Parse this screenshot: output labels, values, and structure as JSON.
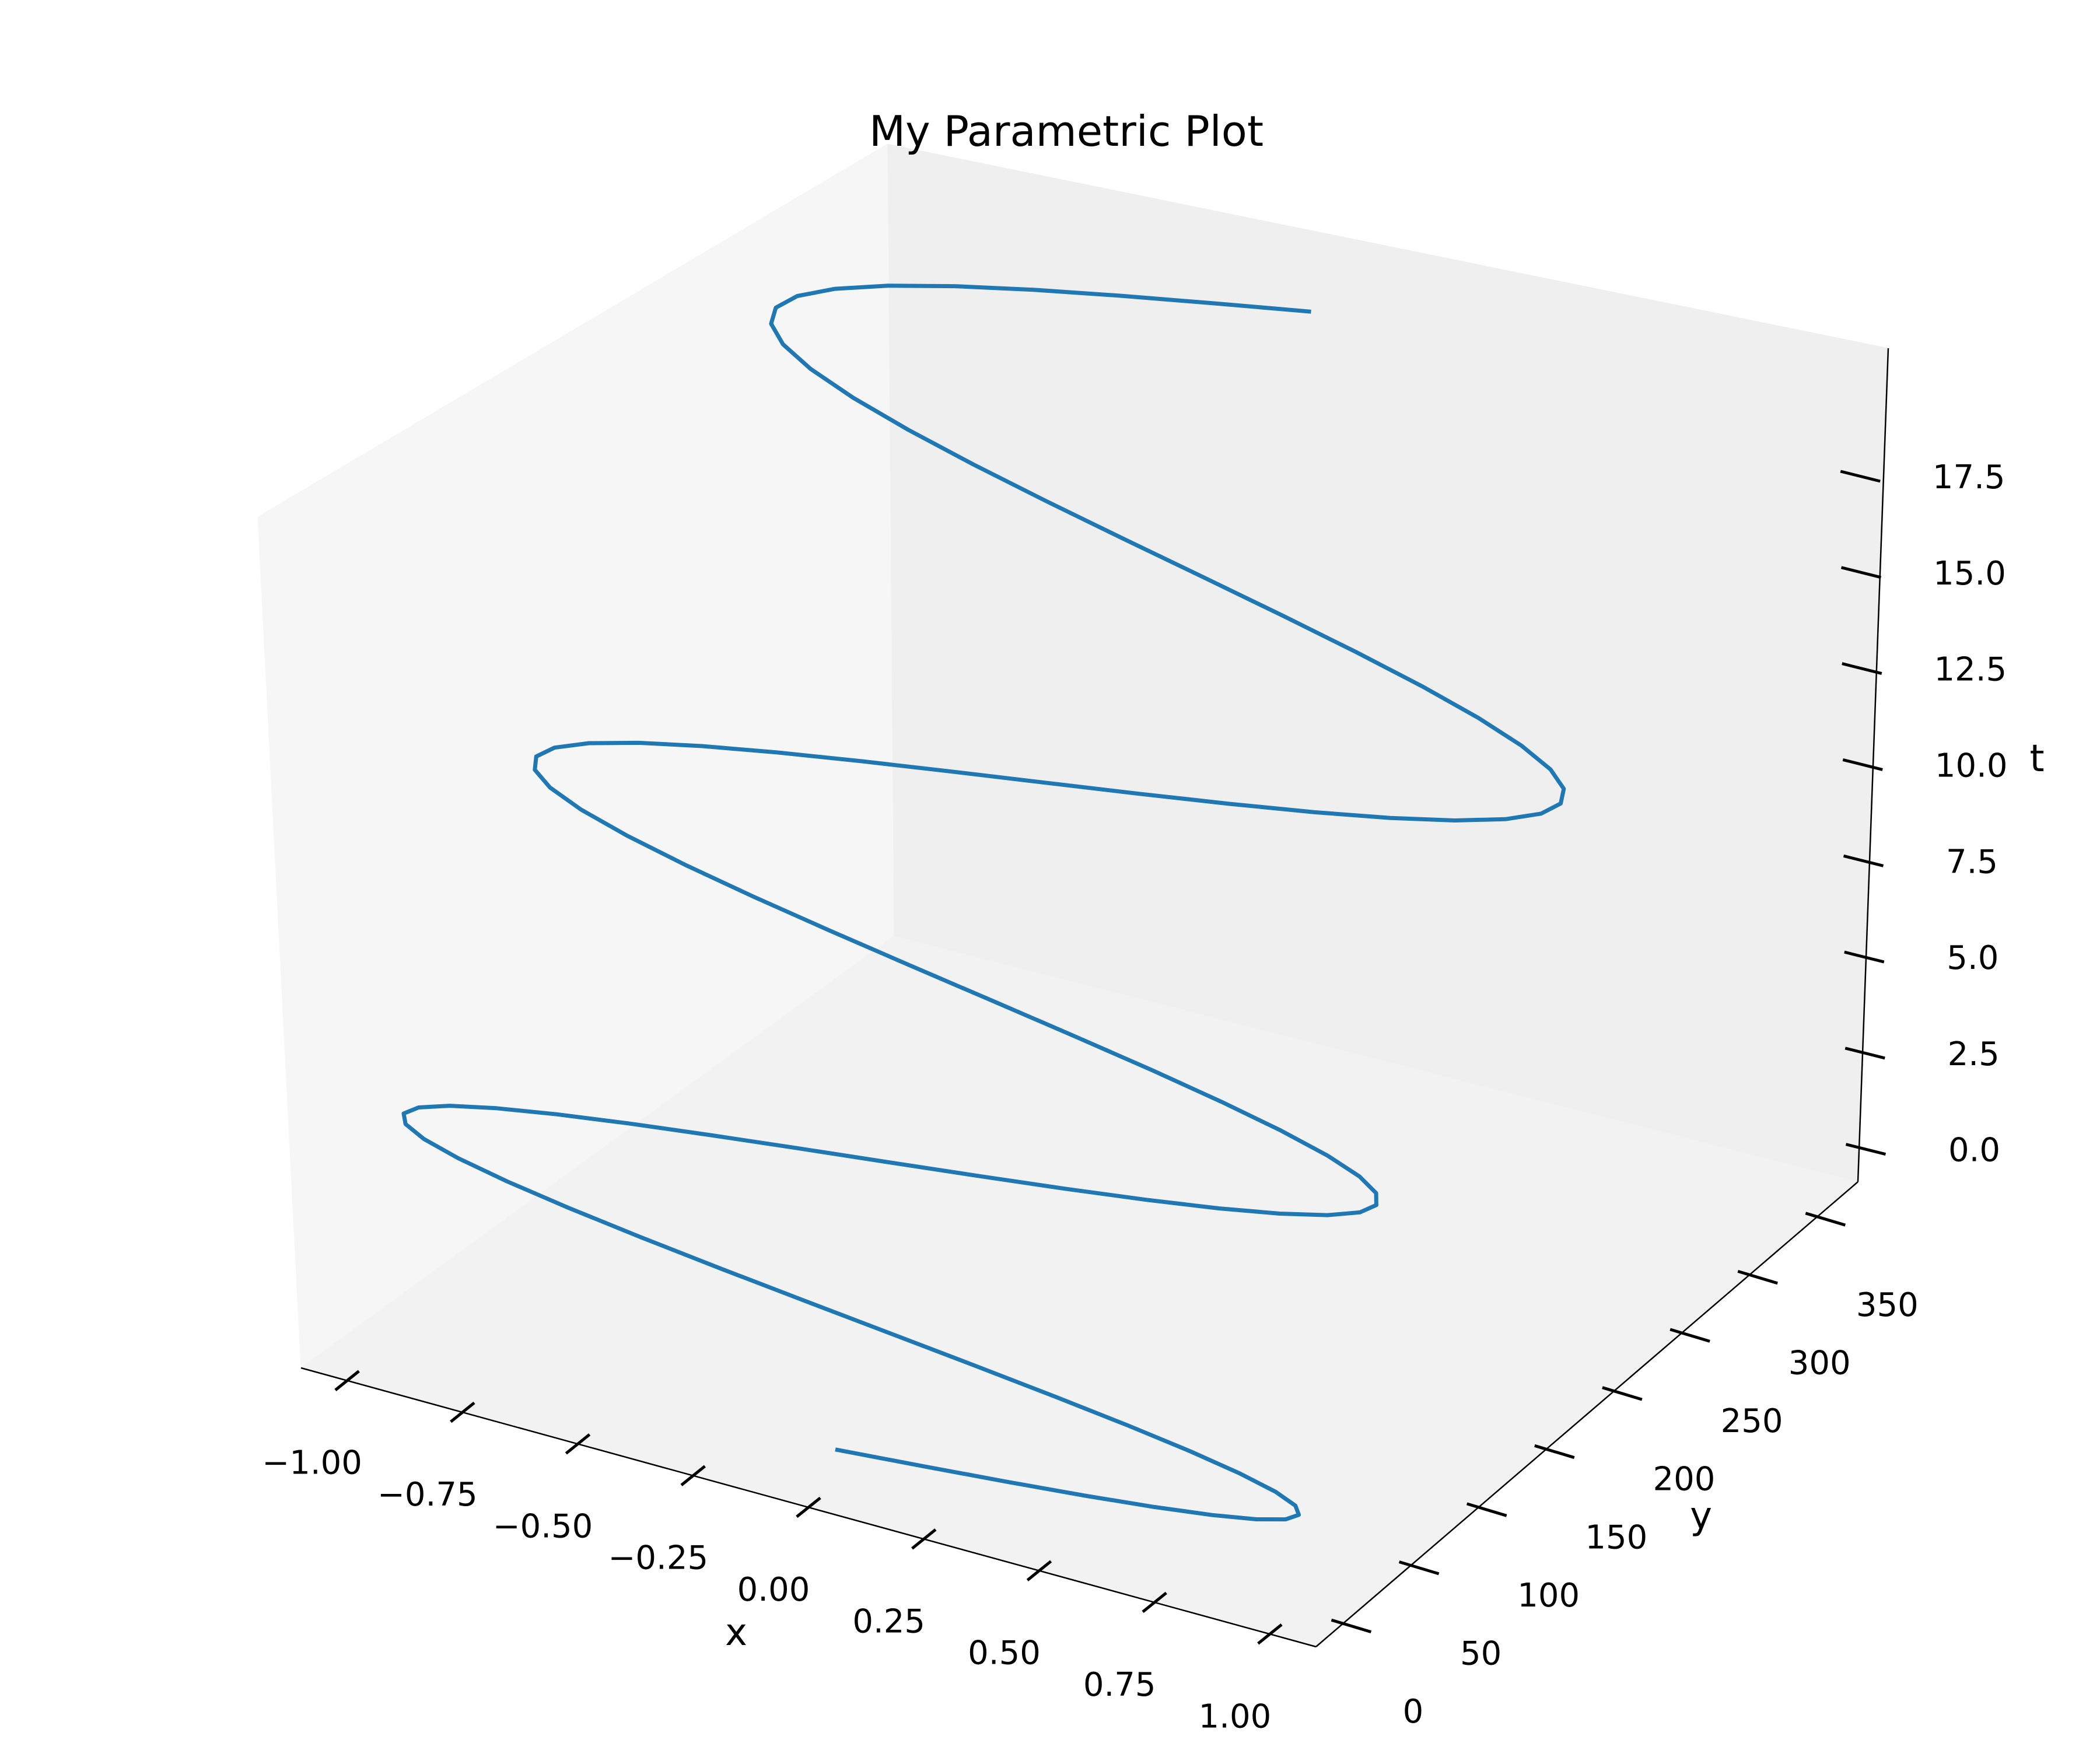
{
  "chart_data": {
    "type": "line3d",
    "title": "My Parametric Plot",
    "xlabel": "x",
    "ylabel": "y",
    "zlabel": "t",
    "xlim": [
      -1.1,
      1.1
    ],
    "ylim": [
      -20,
      380
    ],
    "zlim": [
      -0.9,
      19.7
    ],
    "x_ticks": [
      "−1.00",
      "−0.75",
      "−0.50",
      "−0.25",
      "0.00",
      "0.25",
      "0.50",
      "0.75",
      "1.00"
    ],
    "y_ticks": [
      "0",
      "50",
      "100",
      "150",
      "200",
      "250",
      "300",
      "350"
    ],
    "z_ticks": [
      "0.0",
      "2.5",
      "5.0",
      "7.5",
      "10.0",
      "12.5",
      "15.0",
      "17.5"
    ],
    "grid": false,
    "series": [
      {
        "color": "#1f77b4",
        "parametric": {
          "x": "sin(t)",
          "y": "t^2",
          "z": "t",
          "t_range": [
            0,
            18.85
          ],
          "points": 100
        }
      }
    ]
  }
}
